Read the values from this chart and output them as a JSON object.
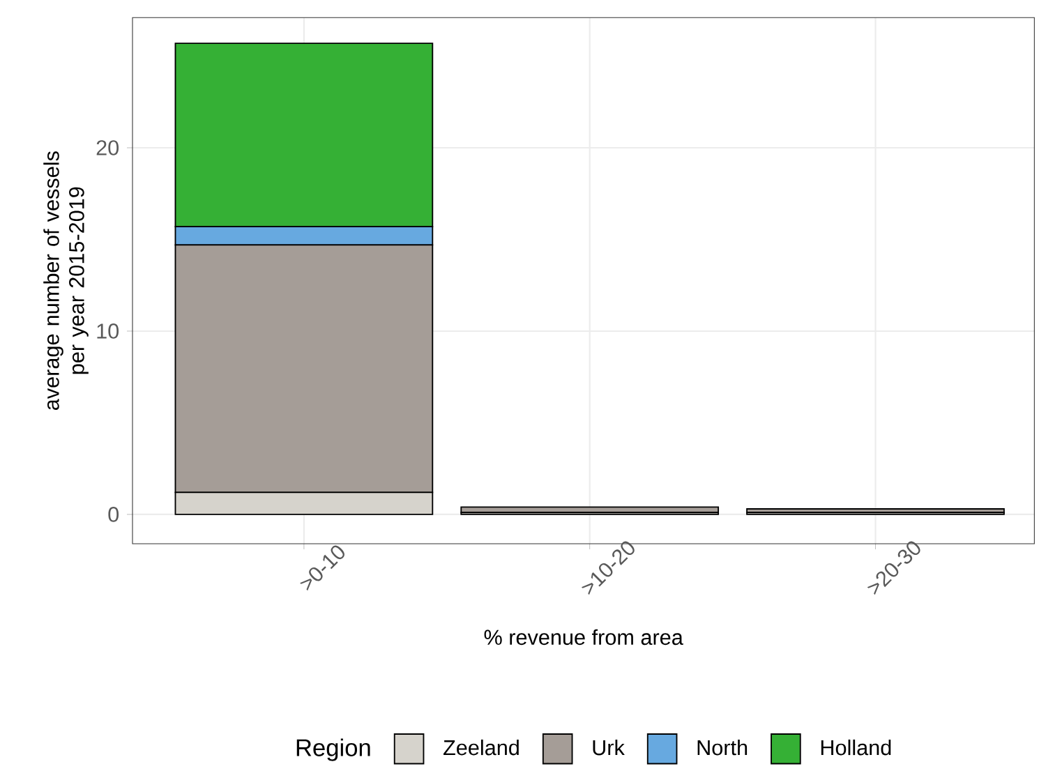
{
  "chart_data": {
    "type": "bar",
    "stacked": true,
    "xlabel": "% revenue from area",
    "ylabel": "average number of vessels per year 2015-2019",
    "legend_title": "Region",
    "categories": [
      ">0-10",
      ">10-20",
      ">20-30"
    ],
    "series": [
      {
        "name": "Zeeland",
        "color": "#d6d3cc",
        "values": [
          1.2,
          0.1,
          0.1
        ]
      },
      {
        "name": "Urk",
        "color": "#a59d97",
        "values": [
          13.5,
          0.3,
          0.2
        ]
      },
      {
        "name": "North",
        "color": "#67a9e0",
        "values": [
          1.0,
          null,
          null
        ]
      },
      {
        "name": "Holland",
        "color": "#35b035",
        "values": [
          10.0,
          null,
          null
        ]
      }
    ],
    "ylim": [
      -1.6,
      27.1
    ],
    "yticks": [
      0,
      10,
      20
    ],
    "grid": true,
    "legend": "bottom"
  }
}
